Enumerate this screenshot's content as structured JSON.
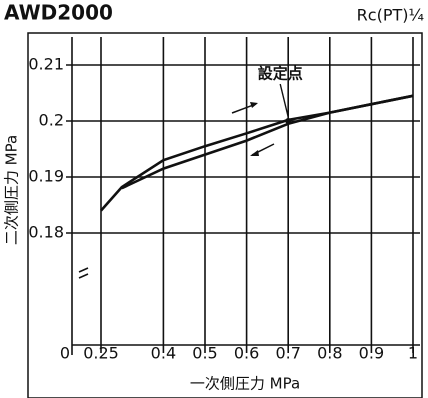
{
  "chart_data": {
    "type": "line",
    "title": "AWD2000",
    "subtitle": "Rc(PT)¼",
    "x_label": "一次側圧力 MPa",
    "y_label": "二次側圧力 MPa",
    "annotation": "設定点",
    "annotation_point": [
      0.7,
      0.2
    ],
    "xlim": [
      0,
      1
    ],
    "xticks": [
      0,
      0.25,
      0.4,
      0.5,
      0.6,
      0.7,
      0.8,
      0.9,
      1
    ],
    "ylim": [
      0.16,
      0.215
    ],
    "yticks": [
      0.18,
      0.19,
      0.2,
      0.21
    ],
    "grid": true,
    "axis_break": true,
    "series": [
      {
        "color": "#111111",
        "x": [
          0.25,
          0.3,
          0.4,
          0.5,
          0.6,
          0.7,
          0.8,
          0.9,
          1
        ],
        "values": [
          0.184,
          0.1882,
          0.193,
          0.1955,
          0.1978,
          0.2002,
          0.2015,
          0.203,
          0.2045
        ]
      },
      {
        "color": "#111111",
        "x": [
          0.3,
          0.4,
          0.5,
          0.6,
          0.7,
          0.8,
          0.9,
          1
        ],
        "values": [
          0.188,
          0.1915,
          0.194,
          0.1965,
          0.1995,
          0.2015,
          0.203,
          0.2045
        ]
      }
    ]
  }
}
